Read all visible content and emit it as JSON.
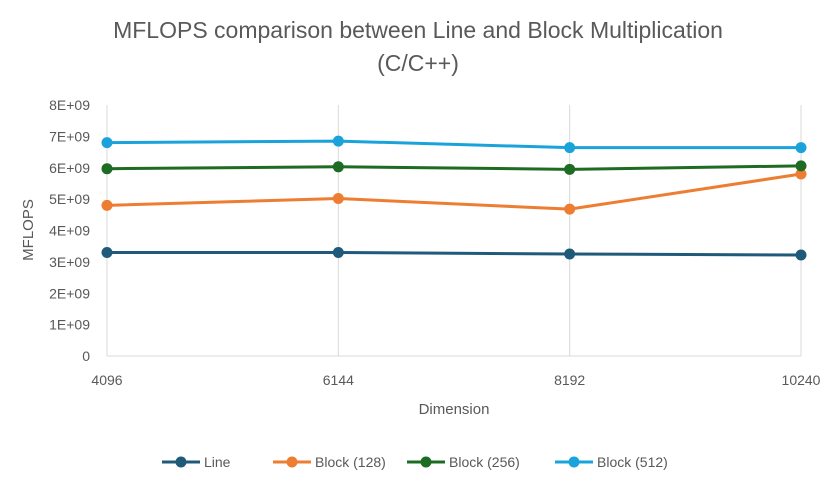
{
  "chart_data": {
    "type": "line",
    "title_lines": [
      "MFLOPS comparison between Line and Block Multiplication",
      "(C/C++)"
    ],
    "xlabel": "Dimension",
    "ylabel": "MFLOPS",
    "categories": [
      "4096",
      "6144",
      "8192",
      "10240"
    ],
    "ylim": [
      0,
      8000000000
    ],
    "y_ticks": [
      {
        "value": 0,
        "label": "0"
      },
      {
        "value": 1000000000,
        "label": "1E+09"
      },
      {
        "value": 2000000000,
        "label": "2E+09"
      },
      {
        "value": 3000000000,
        "label": "3E+09"
      },
      {
        "value": 4000000000,
        "label": "4E+09"
      },
      {
        "value": 5000000000,
        "label": "5E+09"
      },
      {
        "value": 6000000000,
        "label": "6E+09"
      },
      {
        "value": 7000000000,
        "label": "7E+09"
      },
      {
        "value": 8000000000,
        "label": "8E+09"
      }
    ],
    "grid": "vertical",
    "legend_position": "bottom",
    "series": [
      {
        "name": "Line",
        "color": "#1f5a7a",
        "values": [
          3300000000,
          3300000000,
          3250000000,
          3220000000
        ]
      },
      {
        "name": "Block (128)",
        "color": "#ed7d31",
        "values": [
          4800000000,
          5020000000,
          4680000000,
          5800000000
        ]
      },
      {
        "name": "Block (256)",
        "color": "#1e6b24",
        "values": [
          5970000000,
          6030000000,
          5950000000,
          6060000000
        ]
      },
      {
        "name": "Block (512)",
        "color": "#1aa3db",
        "values": [
          6800000000,
          6850000000,
          6640000000,
          6640000000
        ]
      }
    ]
  }
}
